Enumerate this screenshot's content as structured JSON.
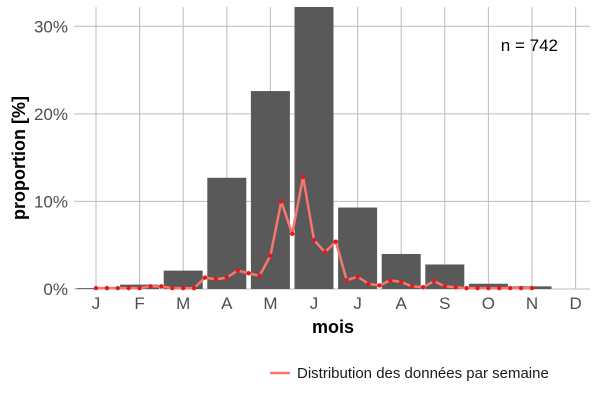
{
  "chart_data": {
    "type": "bar",
    "categories": [
      "J",
      "F",
      "M",
      "A",
      "M",
      "J",
      "J",
      "A",
      "S",
      "O",
      "N",
      "D"
    ],
    "values": [
      0.1,
      0.5,
      2.1,
      12.7,
      22.6,
      32.2,
      9.3,
      4.0,
      2.8,
      0.6,
      0.3,
      0.0
    ],
    "series": [
      {
        "name": "Distribution des données par semaine",
        "x": [
          0.0,
          0.25,
          0.5,
          0.75,
          1.0,
          1.25,
          1.5,
          1.75,
          2.0,
          2.25,
          2.5,
          2.75,
          3.0,
          3.25,
          3.5,
          3.75,
          4.0,
          4.25,
          4.5,
          4.75,
          5.0,
          5.25,
          5.5,
          5.75,
          6.0,
          6.25,
          6.5,
          6.75,
          7.0,
          7.25,
          7.5,
          7.75,
          8.0,
          8.25,
          8.5,
          8.75,
          9.0,
          9.25,
          9.5,
          9.75,
          10.0
        ],
        "values": [
          0.1,
          0.1,
          0.1,
          0.1,
          0.1,
          0.3,
          0.3,
          0.1,
          0.1,
          0.1,
          1.3,
          1.1,
          1.3,
          2.1,
          1.8,
          1.5,
          3.8,
          10.0,
          6.3,
          12.8,
          5.6,
          4.2,
          5.4,
          1.0,
          1.4,
          0.6,
          0.4,
          1.0,
          0.8,
          0.3,
          0.2,
          0.9,
          0.3,
          0.2,
          0.1,
          0.1,
          0.1,
          0.1,
          0.1,
          0.1,
          0.1
        ]
      }
    ],
    "xlabel": "mois",
    "ylabel": "proportion [%]",
    "ylim": [
      0,
      32.2
    ],
    "yticks": [
      0,
      10,
      20,
      30
    ],
    "ytick_labels": [
      "0%",
      "10%",
      "20%",
      "30%"
    ],
    "annotation": "n = 742",
    "grid": true,
    "legend_position": "bottom-right",
    "colors": {
      "bar": "#595959",
      "line": "#f8766d",
      "point": "#e31a1c",
      "grid": "#bdbdbd"
    }
  }
}
